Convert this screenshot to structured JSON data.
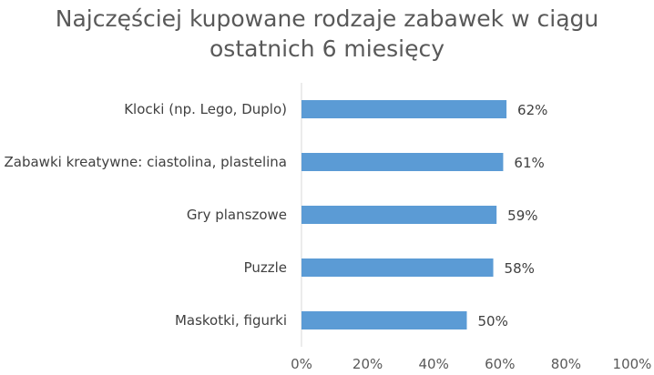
{
  "chart_data": {
    "type": "bar",
    "orientation": "horizontal",
    "title": "Najczęściej kupowane rodzaje zabawek w ciągu ostatnich 6 miesięcy",
    "title_lines": [
      "Najczęściej kupowane rodzaje zabawek w ciągu",
      "ostatnich 6 miesięcy"
    ],
    "categories": [
      "Klocki (np. Lego, Duplo)",
      "Zabawki kreatywne: ciastolina, plastelina",
      "Gry planszowe",
      "Puzzle",
      "Maskotki, figurki"
    ],
    "values": [
      62,
      61,
      59,
      58,
      50
    ],
    "value_labels": [
      "62%",
      "61%",
      "59%",
      "58%",
      "50%"
    ],
    "xlim": [
      0,
      100
    ],
    "x_ticks": [
      "0%",
      "20%",
      "40%",
      "60%",
      "80%",
      "100%"
    ],
    "bar_color": "#5B9BD5",
    "grid": false,
    "legend": "none"
  }
}
